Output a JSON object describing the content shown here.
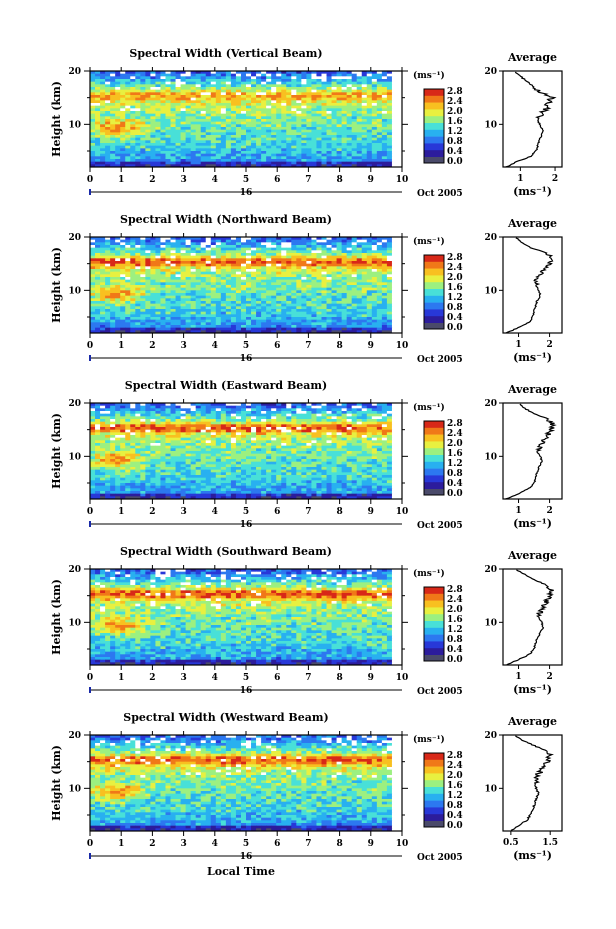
{
  "colors": {
    "scale": [
      "#4a4a6a",
      "#2c1c9c",
      "#2838d8",
      "#2c78f0",
      "#28b0f0",
      "#48e0d8",
      "#9cf080",
      "#e8f040",
      "#f8c020",
      "#f07818",
      "#d82818"
    ]
  },
  "common": {
    "x_tick_labels": [
      "0",
      "1",
      "2",
      "3",
      "4",
      "5",
      "6",
      "7",
      "8",
      "9",
      "10"
    ],
    "y_tick_labels": [
      "20",
      "10"
    ],
    "ylabel": "Height (km)",
    "day_label": "16",
    "date_label": "Oct 2005",
    "xlabel": "Local Time",
    "colorbar_unit": "(ms⁻¹)",
    "colorbar_labels": [
      "2.8",
      "2.4",
      "2.0",
      "1.6",
      "1.2",
      "0.8",
      "0.4",
      "0.0"
    ],
    "avg_title": "Average",
    "avg_unit": "(ms⁻¹)"
  },
  "chart_data": [
    {
      "type": "heatmap",
      "title": "Spectral Width (Vertical Beam)",
      "xlabel": "Local Time",
      "ylabel": "Height (km)",
      "xlim": [
        0,
        10
      ],
      "ylim": [
        2,
        20
      ],
      "colorbar": {
        "unit": "ms-1",
        "range": [
          0.0,
          2.8
        ],
        "ticks": [
          0.0,
          0.4,
          0.8,
          1.2,
          1.6,
          2.0,
          2.4,
          2.8
        ]
      },
      "average_profile": {
        "xlabel": "(ms⁻¹)",
        "xtick_labels": [
          "1",
          "2"
        ],
        "xlim": [
          0.5,
          2.2
        ],
        "height_km": [
          2,
          3,
          4,
          5,
          6,
          7,
          8,
          9,
          10,
          11,
          12,
          13,
          14,
          15,
          16,
          17,
          18,
          19,
          20
        ],
        "width": [
          0.6,
          0.9,
          1.3,
          1.45,
          1.5,
          1.55,
          1.6,
          1.65,
          1.55,
          1.5,
          1.6,
          1.75,
          1.8,
          1.9,
          1.6,
          1.4,
          1.2,
          1.0,
          0.8
        ]
      }
    },
    {
      "type": "heatmap",
      "title": "Spectral Width (Northward Beam)",
      "xlabel": "Local Time",
      "ylabel": "Height (km)",
      "xlim": [
        0,
        10
      ],
      "ylim": [
        2,
        20
      ],
      "colorbar": {
        "unit": "ms-1",
        "range": [
          0.0,
          2.8
        ],
        "ticks": [
          0.0,
          0.4,
          0.8,
          1.2,
          1.6,
          2.0,
          2.4,
          2.8
        ]
      },
      "average_profile": {
        "xlabel": "(ms⁻¹)",
        "xtick_labels": [
          "1",
          "2"
        ],
        "xlim": [
          0.5,
          2.4
        ],
        "height_km": [
          2,
          3,
          4,
          5,
          6,
          7,
          8,
          9,
          10,
          11,
          12,
          13,
          14,
          15,
          16,
          17,
          18,
          19,
          20
        ],
        "width": [
          0.6,
          1.0,
          1.35,
          1.45,
          1.5,
          1.55,
          1.6,
          1.7,
          1.65,
          1.55,
          1.6,
          1.7,
          1.85,
          2.0,
          2.1,
          1.9,
          1.4,
          1.1,
          0.9
        ]
      }
    },
    {
      "type": "heatmap",
      "title": "Spectral Width (Eastward Beam)",
      "xlabel": "Local Time",
      "ylabel": "Height (km)",
      "xlim": [
        0,
        10
      ],
      "ylim": [
        2,
        20
      ],
      "colorbar": {
        "unit": "ms-1",
        "range": [
          0.0,
          2.8
        ],
        "ticks": [
          0.0,
          0.4,
          0.8,
          1.2,
          1.6,
          2.0,
          2.4,
          2.8
        ]
      },
      "average_profile": {
        "xlabel": "(ms⁻¹)",
        "xtick_labels": [
          "1",
          "2"
        ],
        "xlim": [
          0.5,
          2.4
        ],
        "height_km": [
          2,
          3,
          4,
          5,
          6,
          7,
          8,
          9,
          10,
          11,
          12,
          13,
          14,
          15,
          16,
          17,
          18,
          19,
          20
        ],
        "width": [
          0.6,
          1.0,
          1.35,
          1.5,
          1.55,
          1.6,
          1.65,
          1.75,
          1.7,
          1.6,
          1.7,
          1.8,
          1.95,
          2.05,
          2.1,
          1.95,
          1.5,
          1.2,
          1.0
        ]
      }
    },
    {
      "type": "heatmap",
      "title": "Spectral Width (Southward Beam)",
      "xlabel": "Local Time",
      "ylabel": "Height (km)",
      "xlim": [
        0,
        10
      ],
      "ylim": [
        2,
        20
      ],
      "colorbar": {
        "unit": "ms-1",
        "range": [
          0.0,
          2.8
        ],
        "ticks": [
          0.0,
          0.4,
          0.8,
          1.2,
          1.6,
          2.0,
          2.4,
          2.8
        ]
      },
      "average_profile": {
        "xlabel": "(ms⁻¹)",
        "xtick_labels": [
          "1",
          "2"
        ],
        "xlim": [
          0.5,
          2.4
        ],
        "height_km": [
          2,
          3,
          4,
          5,
          6,
          7,
          8,
          9,
          10,
          11,
          12,
          13,
          14,
          15,
          16,
          17,
          18,
          19,
          20
        ],
        "width": [
          0.6,
          1.0,
          1.35,
          1.5,
          1.55,
          1.6,
          1.7,
          1.8,
          1.75,
          1.65,
          1.7,
          1.8,
          1.9,
          2.0,
          2.1,
          1.9,
          1.5,
          1.2,
          0.9
        ]
      }
    },
    {
      "type": "heatmap",
      "title": "Spectral Width (Westward Beam)",
      "xlabel": "Local Time",
      "ylabel": "Height (km)",
      "xlim": [
        0,
        10
      ],
      "ylim": [
        2,
        20
      ],
      "colorbar": {
        "unit": "ms-1",
        "range": [
          0.0,
          2.8
        ],
        "ticks": [
          0.0,
          0.4,
          0.8,
          1.2,
          1.6,
          2.0,
          2.4,
          2.8
        ]
      },
      "average_profile": {
        "xlabel": "(ms⁻¹)",
        "xtick_labels": [
          "0.5",
          "1.5"
        ],
        "xlim": [
          0.3,
          1.8
        ],
        "height_km": [
          2,
          3,
          4,
          5,
          6,
          7,
          8,
          9,
          10,
          11,
          12,
          13,
          14,
          15,
          16,
          17,
          18,
          19,
          20
        ],
        "width": [
          0.5,
          0.7,
          0.9,
          1.0,
          1.05,
          1.1,
          1.15,
          1.2,
          1.15,
          1.1,
          1.15,
          1.25,
          1.35,
          1.45,
          1.5,
          1.4,
          1.1,
          0.8,
          0.6
        ]
      }
    }
  ]
}
